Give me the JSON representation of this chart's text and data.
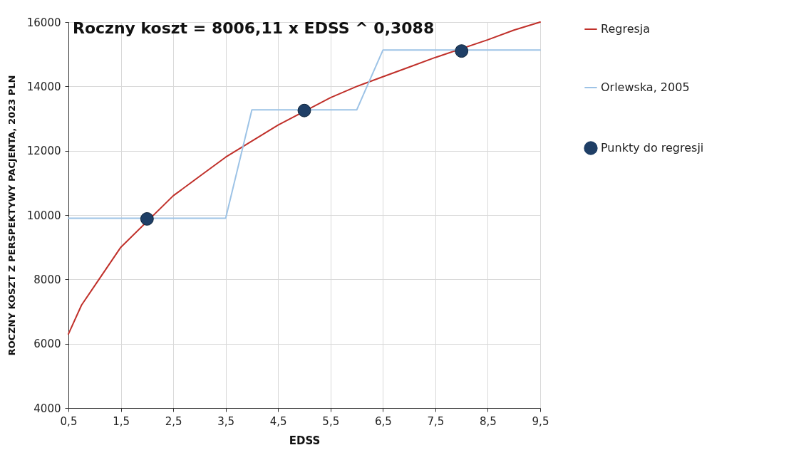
{
  "chart_data": {
    "type": "line",
    "xlabel": "EDSS",
    "ylabel": "ROCZNY KOSZT Z PERSPEKTYWY PACJENTA, 2023 PLN",
    "annotations": [
      "Roczny koszt = 8006,11 x EDSS ^ 0,3088"
    ],
    "xlim": [
      0.5,
      9.5
    ],
    "ylim": [
      4000,
      16000
    ],
    "xticks": [
      {
        "value": 0.5,
        "label": "0,5"
      },
      {
        "value": 1.5,
        "label": "1,5"
      },
      {
        "value": 2.5,
        "label": "2,5"
      },
      {
        "value": 3.5,
        "label": "3,5"
      },
      {
        "value": 4.5,
        "label": "4,5"
      },
      {
        "value": 5.5,
        "label": "5,5"
      },
      {
        "value": 6.5,
        "label": "6,5"
      },
      {
        "value": 7.5,
        "label": "7,5"
      },
      {
        "value": 8.5,
        "label": "8,5"
      },
      {
        "value": 9.5,
        "label": "9,5"
      }
    ],
    "yticks": [
      4000,
      6000,
      8000,
      10000,
      12000,
      14000,
      16000
    ],
    "grid": true,
    "legend": "right",
    "series": [
      {
        "name": "Regresja",
        "color": "#c0302a",
        "x": [
          0.5,
          0.75,
          1,
          1.5,
          2.5,
          3,
          3.5,
          4,
          4.5,
          5.5,
          6,
          6.5,
          7,
          7.5,
          8.5,
          9,
          9.5
        ],
        "values": [
          6300,
          7200,
          7800,
          9000,
          10600,
          11200,
          11800,
          12300,
          12800,
          13650,
          14000,
          14300,
          14600,
          14900,
          15450,
          15750,
          16000
        ]
      },
      {
        "name": "Orlewska, 2005",
        "color": "#9dc3e6",
        "x": [
          0.5,
          3.5,
          4,
          6,
          6.5,
          9.5
        ],
        "values": [
          9900,
          9900,
          13270,
          13270,
          15130,
          15130
        ]
      },
      {
        "name": "Punkty do regresji",
        "type": "scatter",
        "color": "#1f3f66",
        "x": [
          2,
          5,
          8
        ],
        "values": [
          9880,
          13250,
          15100
        ]
      }
    ]
  }
}
